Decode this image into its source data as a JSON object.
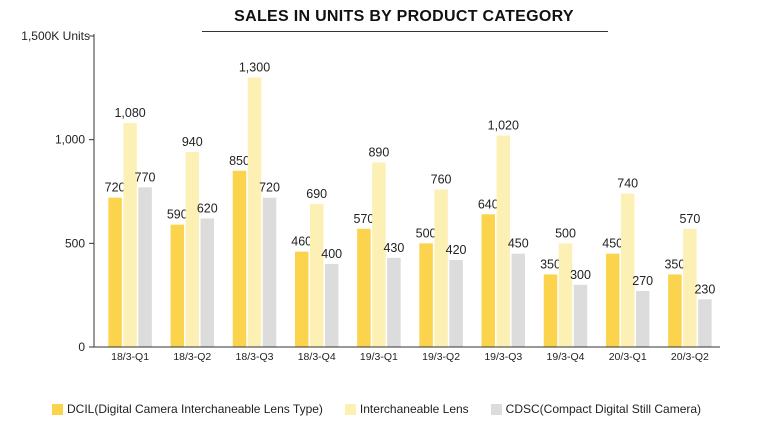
{
  "chart_data": {
    "type": "bar",
    "title": "SALES IN UNITS BY PRODUCT CATEGORY",
    "ylabel": "1,500K Units",
    "xlabel": "",
    "ylim": [
      0,
      1500
    ],
    "yticks": [
      {
        "value": 0,
        "label": "0"
      },
      {
        "value": 500,
        "label": "500"
      },
      {
        "value": 1000,
        "label": "1,000"
      }
    ],
    "categories": [
      "18/3-Q1",
      "18/3-Q2",
      "18/3-Q3",
      "18/3-Q4",
      "19/3-Q1",
      "19/3-Q2",
      "19/3-Q3",
      "19/3-Q4",
      "20/3-Q1",
      "20/3-Q2"
    ],
    "series": [
      {
        "name": "DCIL(Digital Camera Interchaneable Lens Type)",
        "color": "#fcd34d",
        "values": [
          720,
          590,
          850,
          460,
          570,
          500,
          640,
          350,
          450,
          350
        ]
      },
      {
        "name": "Interchaneable Lens",
        "color": "#fdf0b5",
        "values": [
          1080,
          940,
          1300,
          690,
          890,
          760,
          1020,
          500,
          740,
          570
        ]
      },
      {
        "name": "CDSC(Compact Digital Still Camera)",
        "color": "#dcdcdc",
        "values": [
          770,
          620,
          720,
          400,
          430,
          420,
          450,
          300,
          270,
          230
        ]
      }
    ],
    "legend_position": "bottom"
  }
}
